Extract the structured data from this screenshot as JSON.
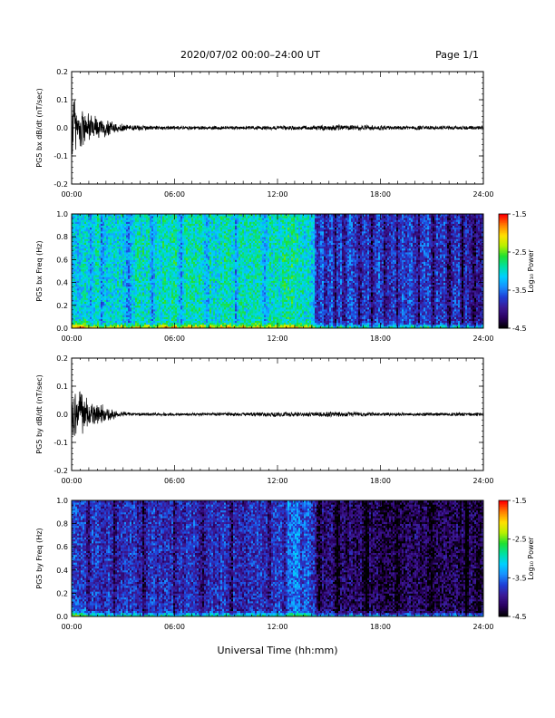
{
  "header": {
    "title": "2020/07/02  00:00–24:00 UT",
    "page": "Page 1/1"
  },
  "xaxis": {
    "label": "Universal Time (hh:mm)",
    "ticks": [
      "00:00",
      "06:00",
      "12:00",
      "18:00",
      "24:00"
    ],
    "range_hours": [
      0,
      24
    ]
  },
  "colorbar": {
    "label": "Log₁₀ Power",
    "ticks": [
      "-1.5",
      "-2.5",
      "-3.5",
      "-4.5"
    ],
    "range": [
      -4.5,
      -1.5
    ],
    "colormap": [
      "#000000",
      "#2a0060",
      "#3c1a96",
      "#1f3fd6",
      "#1890ff",
      "#00d0ff",
      "#00e0a0",
      "#20e030",
      "#b8f000",
      "#ffe000",
      "#ff8000",
      "#ff0000"
    ]
  },
  "chart_data": [
    {
      "type": "line",
      "title": "",
      "xlabel": "",
      "ylabel": "PG5 bx dB/dt (nT/sec)",
      "ylim": [
        -0.2,
        0.2
      ],
      "yticks": [
        "0.2",
        "0.1",
        "0.0",
        "-0.1",
        "-0.2"
      ],
      "line_color": "#000000",
      "envelope": {
        "x_hours": [
          0,
          0.3,
          0.7,
          1.2,
          1.8,
          2.5,
          3.5,
          5,
          8,
          11,
          14,
          15.5,
          17,
          19,
          22,
          24
        ],
        "amplitude": [
          0.16,
          0.1,
          0.075,
          0.055,
          0.04,
          0.022,
          0.012,
          0.008,
          0.007,
          0.008,
          0.009,
          0.012,
          0.01,
          0.009,
          0.008,
          0.008
        ]
      }
    },
    {
      "type": "heatmap",
      "title": "",
      "xlabel": "",
      "ylabel": "PG5 bx Freq (Hz)",
      "ylim": [
        0,
        1.0
      ],
      "yticks": [
        "1.0",
        "0.8",
        "0.6",
        "0.4",
        "0.2",
        "0.0"
      ],
      "zlim": [
        -4.5,
        -1.5
      ],
      "column_profile": {
        "x_hours": [
          0,
          1,
          2,
          3,
          4,
          6,
          8,
          10,
          12,
          13,
          14,
          14.5,
          16,
          18,
          20,
          22,
          24
        ],
        "log_power": [
          -3.2,
          -3.0,
          -3.05,
          -3.1,
          -3.0,
          -2.95,
          -3.0,
          -2.95,
          -3.0,
          -2.85,
          -3.15,
          -3.6,
          -3.7,
          -3.75,
          -3.7,
          -3.8,
          -3.9
        ]
      },
      "dark_bands_hours": [
        1.1,
        1.8,
        3.3,
        4.7,
        6.4,
        7.9,
        9.6,
        11.3,
        14.3,
        14.8,
        15.4,
        15.9,
        16.8,
        17.5,
        18.3,
        19.0,
        20.2,
        21.1,
        22.0,
        22.8,
        23.5
      ]
    },
    {
      "type": "line",
      "title": "",
      "xlabel": "",
      "ylabel": "PG5 by dB/dt (nT/sec)",
      "ylim": [
        -0.2,
        0.2
      ],
      "yticks": [
        "0.2",
        "0.1",
        "0.0",
        "-0.1",
        "-0.2"
      ],
      "line_color": "#000000",
      "envelope": {
        "x_hours": [
          0,
          0.4,
          0.8,
          1.2,
          1.7,
          2.2,
          2.8,
          3.5,
          5,
          8,
          10.5,
          12,
          13.5,
          15,
          17,
          20,
          24
        ],
        "amplitude": [
          0.12,
          0.09,
          0.07,
          0.05,
          0.04,
          0.025,
          0.012,
          0.007,
          0.006,
          0.006,
          0.008,
          0.01,
          0.009,
          0.011,
          0.009,
          0.007,
          0.007
        ]
      }
    },
    {
      "type": "heatmap",
      "title": "",
      "xlabel": "",
      "ylabel": "PG5 by Freq (Hz)",
      "ylim": [
        0,
        1.0
      ],
      "yticks": [
        "1.0",
        "0.8",
        "0.6",
        "0.4",
        "0.2",
        "0.0"
      ],
      "zlim": [
        -4.5,
        -1.5
      ],
      "column_profile": {
        "x_hours": [
          0,
          1,
          2,
          3,
          4,
          6,
          8,
          10,
          12,
          13,
          14,
          14.5,
          16,
          18,
          20,
          22,
          24
        ],
        "log_power": [
          -3.7,
          -3.75,
          -3.8,
          -3.8,
          -3.85,
          -3.8,
          -3.85,
          -3.85,
          -3.7,
          -3.55,
          -3.7,
          -4.1,
          -4.2,
          -4.25,
          -4.2,
          -4.25,
          -4.3
        ]
      },
      "dark_bands_hours": [
        1.0,
        2.5,
        4.2,
        6.0,
        7.6,
        9.3,
        11.5,
        12.4,
        14.4,
        15.5,
        17.2,
        19.0,
        21.0,
        23.0
      ]
    }
  ]
}
